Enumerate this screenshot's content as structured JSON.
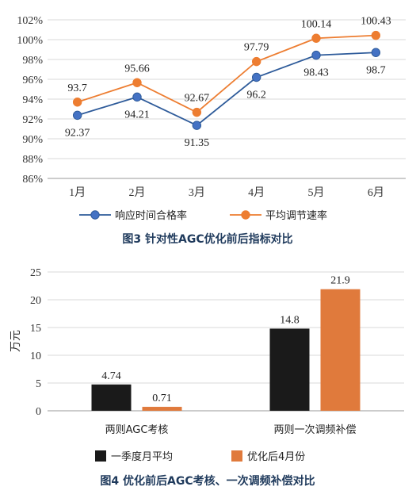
{
  "chart_data": [
    {
      "type": "line",
      "categories": [
        "1月",
        "2月",
        "3月",
        "4月",
        "5月",
        "6月"
      ],
      "series": [
        {
          "name": "响应时间合格率",
          "values": [
            92.37,
            94.21,
            91.35,
            96.2,
            98.43,
            98.7
          ],
          "color": "#2e5b9a",
          "marker_color": "#4472c4",
          "labels": [
            "92.37",
            "94.21",
            "91.35",
            "96.2",
            "98.43",
            "98.7"
          ]
        },
        {
          "name": "平均调节速率",
          "values": [
            93.7,
            95.66,
            92.67,
            97.79,
            100.14,
            100.43
          ],
          "color": "#ed7d31",
          "marker_color": "#ed7d31",
          "labels": [
            "93.7",
            "95.66",
            "92.67",
            "97.79",
            "100.14",
            "100.43"
          ]
        }
      ],
      "ylim": [
        86,
        102
      ],
      "yticks": [
        "86%",
        "88%",
        "90%",
        "92%",
        "94%",
        "96%",
        "98%",
        "100%",
        "102%"
      ],
      "grid": true,
      "legend_position": "bottom",
      "caption": "图3   针对性AGC优化前后指标对比"
    },
    {
      "type": "bar",
      "categories": [
        "两则AGC考核",
        "两则一次调频补偿"
      ],
      "series": [
        {
          "name": "一季度月平均",
          "values": [
            4.74,
            14.8
          ],
          "color": "#1a1a1a",
          "labels": [
            "4.74",
            "14.8"
          ]
        },
        {
          "name": "优化后4月份",
          "values": [
            0.71,
            21.9
          ],
          "color": "#e07a3c",
          "labels": [
            "0.71",
            "21.9"
          ]
        }
      ],
      "ylim": [
        0,
        25
      ],
      "yticks": [
        "0",
        "5",
        "10",
        "15",
        "20",
        "25"
      ],
      "ylabel": "万元",
      "grid": true,
      "legend_position": "bottom",
      "caption": "图4   优化前后AGC考核、一次调频补偿对比"
    }
  ]
}
